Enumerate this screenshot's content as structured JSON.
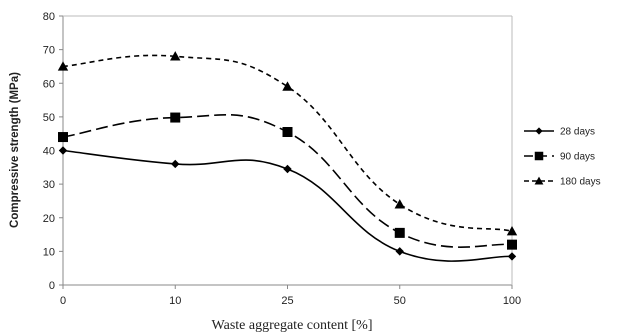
{
  "chart_data": {
    "type": "line",
    "title": "",
    "xlabel": "Waste aggregate content [%]",
    "ylabel": "Compressive strength (MPa)",
    "categories": [
      "0",
      "10",
      "25",
      "50",
      "100"
    ],
    "ylim": [
      0,
      80
    ],
    "yticks": [
      0,
      10,
      20,
      30,
      40,
      50,
      60,
      70,
      80
    ],
    "grid": false,
    "legend_position": "right",
    "series": [
      {
        "name": "28 days",
        "values": [
          40,
          36,
          34.5,
          10,
          8.5
        ],
        "marker": "diamond",
        "dash": "solid",
        "color": "#000000"
      },
      {
        "name": "90 days",
        "values": [
          44,
          49.8,
          45.5,
          15.5,
          12
        ],
        "marker": "square",
        "dash": "long-dash",
        "color": "#000000"
      },
      {
        "name": "180 days",
        "values": [
          65,
          68,
          59,
          24,
          16
        ],
        "marker": "triangle",
        "dash": "short-dash",
        "color": "#000000"
      }
    ]
  }
}
